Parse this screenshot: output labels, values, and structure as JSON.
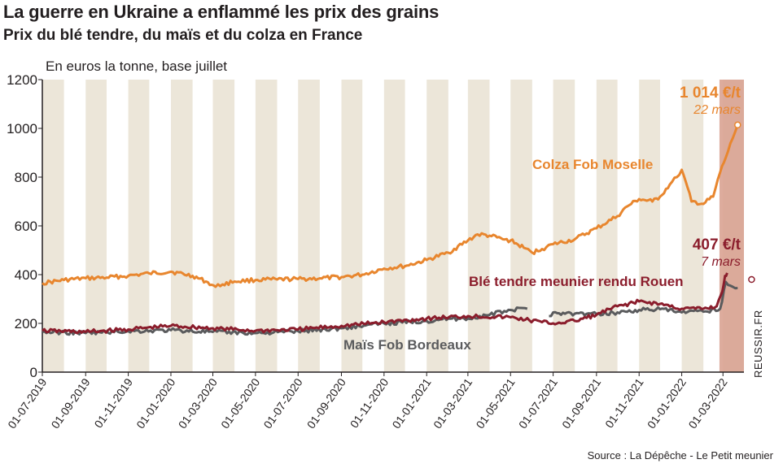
{
  "header": {
    "title": "La guerre en Ukraine a enflammé les prix des grains",
    "subtitle": "Prix du blé tendre, du maïs et du colza en France",
    "unit": "En euros la tonne, base juillet"
  },
  "footer": {
    "source": "Source : La Dépêche - Le Petit meunier",
    "side_credit": "REUSSIR.FR"
  },
  "chart_data": {
    "type": "line",
    "title": "La guerre en Ukraine a enflammé les prix des grains",
    "subtitle": "Prix du blé tendre, du maïs et du colza en France",
    "ylabel": "En euros la tonne, base juillet",
    "ylim": [
      0,
      1200
    ],
    "yticks": [
      0,
      200,
      400,
      600,
      800,
      1000,
      1200
    ],
    "xlim": [
      "2019-07-01",
      "2022-03-31"
    ],
    "xticks": [
      "01-07-2019",
      "01-09-2019",
      "01-11-2019",
      "01-01-2020",
      "01-03-2020",
      "01-05-2020",
      "01-07-2020",
      "01-09-2020",
      "01-11-2020",
      "01-01-2021",
      "01-03-2021",
      "01-05-2021",
      "01-07-2021",
      "01-09-2021",
      "01-11-2021",
      "01-01-2022",
      "01-03-2022"
    ],
    "grid": false,
    "shaded_bands": "alternate months",
    "highlight_band": [
      "2022-02-24",
      "2022-03-31"
    ],
    "series": [
      {
        "name": "Colza Fob Moselle",
        "color": "#e8862e",
        "x": [
          "2019-07-01",
          "2019-08-01",
          "2019-09-01",
          "2019-10-01",
          "2019-11-01",
          "2019-12-01",
          "2020-01-01",
          "2020-02-01",
          "2020-02-20",
          "2020-03-05",
          "2020-03-15",
          "2020-04-01",
          "2020-05-01",
          "2020-06-01",
          "2020-07-01",
          "2020-08-01",
          "2020-09-01",
          "2020-10-01",
          "2020-11-01",
          "2020-12-01",
          "2021-01-01",
          "2021-02-01",
          "2021-03-01",
          "2021-03-15",
          "2021-04-01",
          "2021-04-20",
          "2021-05-01",
          "2021-05-20",
          "2021-06-01",
          "2021-06-15",
          "2021-07-01",
          "2021-08-01",
          "2021-09-01",
          "2021-10-01",
          "2021-10-15",
          "2021-11-01",
          "2021-11-20",
          "2021-12-01",
          "2021-12-15",
          "2021-12-25",
          "2022-01-01",
          "2022-01-15",
          "2022-02-01",
          "2022-02-15",
          "2022-02-25",
          "2022-03-05",
          "2022-03-15",
          "2022-03-22"
        ],
        "values": [
          365,
          378,
          385,
          388,
          395,
          405,
          412,
          395,
          372,
          350,
          360,
          372,
          378,
          380,
          382,
          385,
          390,
          400,
          425,
          435,
          460,
          490,
          540,
          565,
          560,
          545,
          540,
          510,
          490,
          505,
          525,
          545,
          590,
          640,
          680,
          710,
          700,
          720,
          770,
          800,
          830,
          700,
          690,
          720,
          820,
          880,
          960,
          1014
        ]
      },
      {
        "name": "Blé tendre meunier rendu Rouen",
        "color": "#8b1d2c",
        "x": [
          "2019-07-01",
          "2019-09-01",
          "2019-11-01",
          "2020-01-01",
          "2020-03-01",
          "2020-05-01",
          "2020-07-01",
          "2020-09-01",
          "2020-11-01",
          "2021-01-01",
          "2021-03-01",
          "2021-05-01",
          "2021-06-15",
          "2021-07-01",
          "2021-08-01",
          "2021-09-01",
          "2021-10-01",
          "2021-11-01",
          "2021-12-01",
          "2022-01-01",
          "2022-02-01",
          "2022-02-20",
          "2022-02-28",
          "2022-03-04",
          "2022-03-07"
        ],
        "values": [
          170,
          165,
          175,
          190,
          180,
          170,
          175,
          190,
          205,
          220,
          230,
          225,
          205,
          200,
          210,
          235,
          270,
          290,
          280,
          260,
          260,
          270,
          330,
          395,
          407
        ]
      },
      {
        "name": "Maïs Fob Bordeaux",
        "color": "#5a5b5d",
        "x": [
          "2019-07-01",
          "2019-09-01",
          "2019-11-01",
          "2020-01-01",
          "2020-03-01",
          "2020-05-01",
          "2020-07-01",
          "2020-09-01",
          "2020-11-01",
          "2021-01-01",
          "2021-02-01",
          "2021-03-01",
          "2021-04-01",
          "2021-05-01",
          "2021-05-25",
          null,
          "2021-06-25",
          "2021-07-01",
          "2021-08-01",
          "2021-09-01",
          "2021-10-01",
          "2021-11-01",
          "2021-12-01",
          "2022-01-01",
          "2022-02-01",
          "2022-02-25",
          "2022-03-05",
          "2022-03-15",
          "2022-03-22"
        ],
        "values": [
          165,
          160,
          168,
          172,
          165,
          160,
          168,
          180,
          200,
          210,
          220,
          220,
          235,
          255,
          260,
          null,
          230,
          245,
          240,
          238,
          245,
          255,
          258,
          245,
          248,
          260,
          370,
          350,
          345
        ]
      }
    ],
    "annotations": [
      {
        "series": "Colza Fob Moselle",
        "value_label": "1 014 €/t",
        "date_label": "22 mars",
        "x": "2022-03-22",
        "y": 1014
      },
      {
        "series": "Blé tendre meunier rendu Rouen",
        "value_label": "407 €/t",
        "date_label": "7 mars",
        "x": "2022-03-07",
        "y": 407
      }
    ],
    "series_labels": [
      "Colza Fob Moselle",
      "Blé tendre meunier rendu Rouen",
      "Maïs Fob Bordeaux"
    ]
  }
}
